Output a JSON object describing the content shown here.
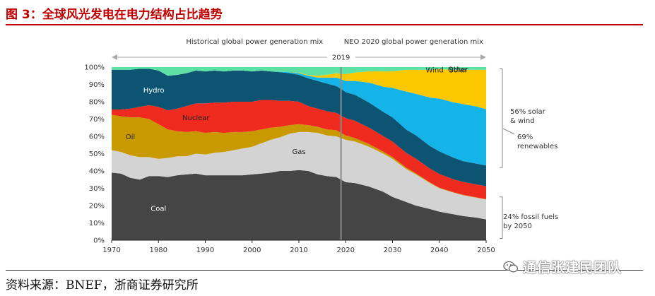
{
  "figure": {
    "title": "图 3：全球风光发电在电力结构占比趋势",
    "source": "资料来源：BNEF，浙商证券研究所",
    "watermark": "通信张建民团队",
    "watermark_icon": "wechat-icon"
  },
  "colors": {
    "coal": "#454545",
    "gas": "#d3d3d3",
    "oil": "#c99a00",
    "nuclear": "#ef2b1f",
    "hydro": "#0c5472",
    "wind": "#14b4e8",
    "solar": "#fdc800",
    "other": "#5fe0a4",
    "title_red": "#c00000"
  },
  "chart_data": {
    "type": "area",
    "stacked": true,
    "xlim": [
      1970,
      2050
    ],
    "ylim": [
      0,
      100
    ],
    "x_ticks": [
      "1970",
      "1980",
      "1990",
      "2000",
      "2010",
      "2020",
      "2030",
      "2040",
      "2050"
    ],
    "y_ticks": [
      "0%",
      "10%",
      "20%",
      "30%",
      "40%",
      "50%",
      "60%",
      "70%",
      "80%",
      "90%",
      "100%"
    ],
    "divider_year": 2019,
    "divider_label": "2019",
    "historical_label": "Historical global power generation mix",
    "forecast_label": "NEO 2020  global power generation mix",
    "years": [
      1970,
      1972,
      1974,
      1976,
      1978,
      1980,
      1982,
      1984,
      1986,
      1988,
      1990,
      1992,
      1994,
      1996,
      1998,
      2000,
      2002,
      2004,
      2006,
      2008,
      2010,
      2012,
      2014,
      2016,
      2018,
      2019,
      2020,
      2022,
      2025,
      2028,
      2030,
      2033,
      2035,
      2038,
      2040,
      2043,
      2045,
      2048,
      2050
    ],
    "series": [
      {
        "name": "Coal",
        "label": "Coal",
        "values": [
          39,
          38.5,
          36,
          35,
          37,
          37,
          36.5,
          37.5,
          38,
          38.5,
          37.5,
          37.5,
          37.5,
          37.5,
          37.5,
          38,
          38.5,
          39,
          40,
          40,
          40.5,
          40,
          38,
          37,
          36.5,
          35,
          33.5,
          33,
          31,
          28,
          25,
          22,
          20,
          18,
          16.5,
          15,
          14,
          13,
          12
        ]
      },
      {
        "name": "Gas",
        "label": "Gas",
        "values": [
          13,
          12.5,
          13,
          13,
          11,
          10,
          11,
          11,
          10.5,
          11.5,
          12,
          13,
          13.5,
          14.5,
          15.5,
          16,
          17.5,
          19,
          19.5,
          21.5,
          22,
          22.5,
          24,
          23.5,
          23.5,
          24,
          24.5,
          24,
          23,
          22,
          22,
          19,
          18,
          15,
          13.5,
          12.5,
          12,
          11.5,
          11.5
        ]
      },
      {
        "name": "Oil",
        "label": "Oil",
        "values": [
          20.5,
          20.5,
          22,
          23,
          22,
          20,
          16.5,
          14.5,
          14,
          13,
          12.5,
          12,
          11,
          10.5,
          9.5,
          9,
          8,
          7,
          6,
          5,
          4.5,
          4,
          3.5,
          3.5,
          3.5,
          3,
          2.5,
          2,
          1.5,
          1.2,
          1,
          0.8,
          0.6,
          0.4,
          0.3,
          0.2,
          0.2,
          0.2,
          0.2
        ]
      },
      {
        "name": "Nuclear",
        "label": "Nuclear",
        "values": [
          3,
          4,
          5,
          6,
          8,
          10,
          11,
          13,
          15,
          16,
          17,
          17,
          17.5,
          17.5,
          17.5,
          17,
          17,
          16,
          15,
          14,
          13,
          11,
          10.5,
          10.5,
          10,
          10,
          10,
          10,
          9.5,
          9,
          9,
          8.5,
          8.5,
          8,
          8,
          7.5,
          7.5,
          7.5,
          7.5
        ]
      },
      {
        "name": "Hydro",
        "label": "Hydro",
        "values": [
          23,
          23,
          22.5,
          22,
          21,
          21,
          20,
          19.5,
          19,
          19,
          18.5,
          18.5,
          18,
          18,
          18,
          17.5,
          17,
          16.5,
          16.5,
          16,
          15.5,
          16,
          16,
          16,
          15.5,
          15.5,
          15,
          15,
          14.5,
          14,
          14,
          13.5,
          13.5,
          13,
          13,
          12.5,
          12,
          12,
          12
        ]
      },
      {
        "name": "Wind",
        "label": "Wind",
        "values": [
          0,
          0,
          0,
          0,
          0,
          0,
          0,
          0,
          0,
          0,
          0,
          0,
          0,
          0,
          0,
          0,
          0,
          0,
          0.3,
          0.5,
          1,
          1.5,
          2,
          3.5,
          5,
          5.5,
          6.5,
          8,
          11.5,
          14.5,
          17,
          22,
          24,
          28,
          30.5,
          32,
          33,
          33,
          32.5
        ]
      },
      {
        "name": "Solar",
        "label": "Solar",
        "values": [
          0,
          0,
          0,
          0,
          0,
          0,
          0,
          0,
          0,
          0,
          0,
          0,
          0,
          0,
          0,
          0,
          0,
          0,
          0,
          0,
          0.2,
          0.5,
          1,
          1.5,
          2.5,
          3,
          4,
          4.8,
          6.6,
          8.8,
          9.6,
          12.6,
          13.8,
          16,
          17,
          18.8,
          19.8,
          21.3,
          22.8
        ]
      },
      {
        "name": "Other",
        "label": "Other",
        "values": [
          1.5,
          1.5,
          1.5,
          1,
          1,
          2,
          6,
          4.5,
          3.5,
          2,
          2.5,
          2,
          2.5,
          2,
          2,
          2.5,
          2,
          2.5,
          2.7,
          3,
          3.3,
          4.5,
          5,
          4.5,
          3.5,
          4,
          4,
          3.2,
          2.4,
          2.5,
          2.4,
          1.6,
          1.6,
          1.6,
          1.7,
          1.5,
          1.5,
          1.5,
          1.5
        ]
      }
    ],
    "annotations": [
      {
        "id": "solar-wind",
        "text_lines": [
          "56% solar",
          "& wind"
        ]
      },
      {
        "id": "renewables",
        "text_lines": [
          "69%",
          "renewables"
        ]
      },
      {
        "id": "fossil",
        "text_lines": [
          "24% fossil fuels",
          "by 2050"
        ]
      }
    ]
  }
}
